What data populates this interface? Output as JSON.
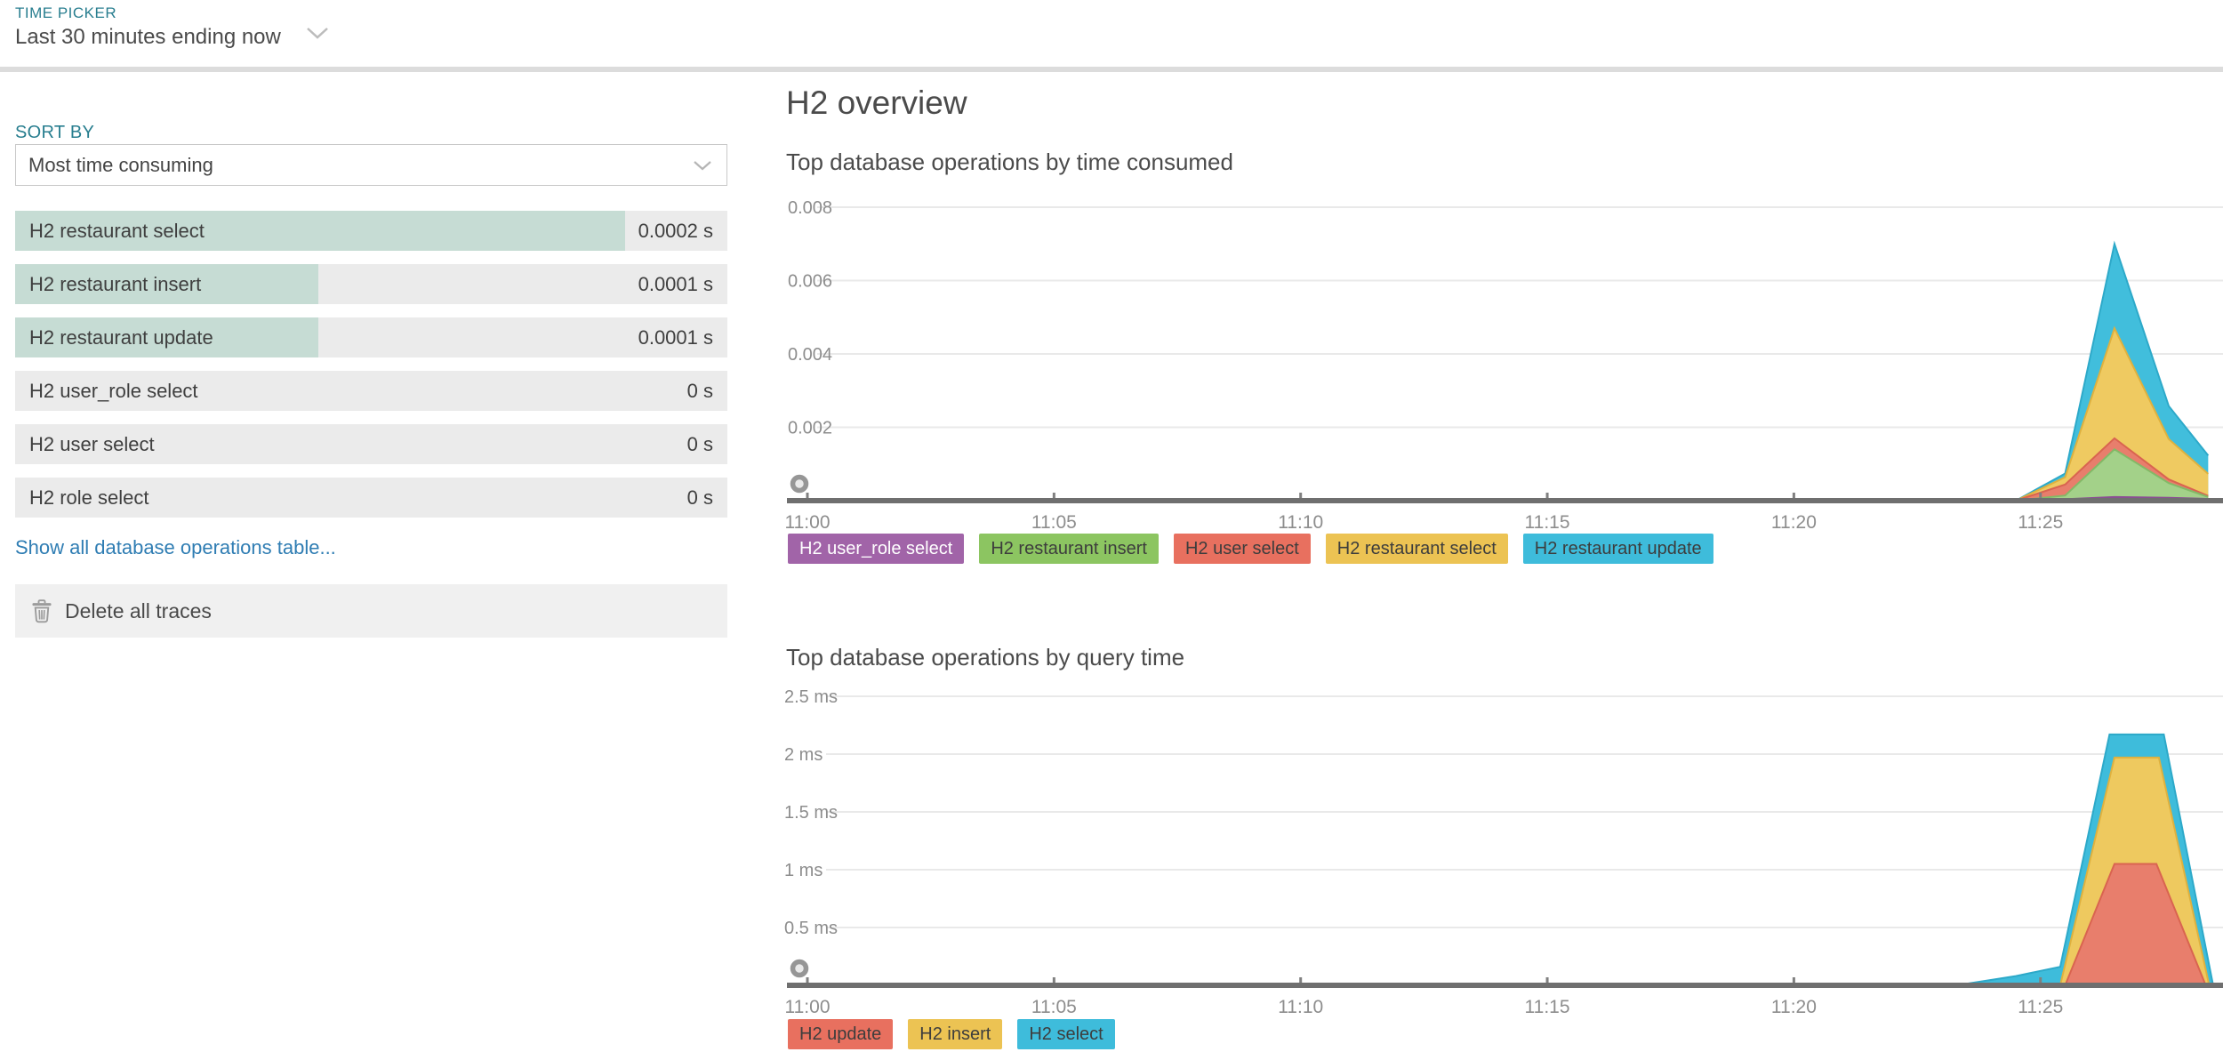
{
  "header": {
    "time_picker_label": "TIME PICKER",
    "time_picker_value": "Last 30 minutes ending now"
  },
  "sidebar": {
    "sort_by_label": "SORT BY",
    "sort_by_value": "Most time consuming",
    "operations": [
      {
        "name": "H2 restaurant select",
        "value": "0.0002 s",
        "bar_pct": 85.6
      },
      {
        "name": "H2 restaurant insert",
        "value": "0.0001 s",
        "bar_pct": 42.6
      },
      {
        "name": "H2 restaurant update",
        "value": "0.0001 s",
        "bar_pct": 42.6
      },
      {
        "name": "H2 user_role select",
        "value": "0 s",
        "bar_pct": 0
      },
      {
        "name": "H2 user select",
        "value": "0 s",
        "bar_pct": 0
      },
      {
        "name": "H2 role select",
        "value": "0 s",
        "bar_pct": 0
      }
    ],
    "show_all_link": "Show all database operations table...",
    "delete_button_label": "Delete all traces"
  },
  "main": {
    "title": "H2 overview"
  },
  "colors": {
    "accent_teal": "#287e8f",
    "link_blue": "#2f7db3",
    "list_bar_fill": "#c6dcd4",
    "row_bg": "#ebebeb",
    "axis_line": "#6f6f6f",
    "grid_line": "#e9e9e9",
    "tick_text": "#8d8d8d"
  },
  "chart_data": [
    {
      "type": "area",
      "stacked": true,
      "title": "Top database operations by time consumed",
      "x_axis": {
        "tick_labels": [
          "11:00",
          "11:05",
          "11:10",
          "11:15",
          "11:20",
          "11:25"
        ],
        "tick_minutes": [
          0,
          5,
          10,
          15,
          20,
          25
        ],
        "range_minutes": [
          0,
          28.7
        ]
      },
      "y_axis": {
        "tick_values": [
          0.002,
          0.004,
          0.006,
          0.008
        ],
        "tick_labels": [
          "0.002",
          "0.004",
          "0.006",
          "0.008"
        ],
        "ylim": [
          0,
          0.0083
        ],
        "unit": "s"
      },
      "x_minutes": [
        0,
        5,
        10,
        15,
        20,
        24.5,
        25.5,
        26.5,
        27.6,
        28.4
      ],
      "series": [
        {
          "name": "H2 user_role select",
          "values": [
            0,
            0,
            0,
            0,
            0,
            0,
            4e-05,
            0.0001,
            8e-05,
            5e-05
          ],
          "fill": "#9e63a6",
          "stroke": "#8a4f93"
        },
        {
          "name": "H2 restaurant insert",
          "values": [
            0,
            0,
            0,
            0,
            0,
            0,
            0.0001,
            0.0013,
            0.0004,
            5e-05
          ],
          "fill": "#a3d189",
          "stroke": "#83b967"
        },
        {
          "name": "H2 user select",
          "values": [
            0,
            0,
            0,
            0,
            0,
            0,
            0.0003,
            0.0003,
            0.0001,
            3e-05
          ],
          "fill": "#e87e6c",
          "stroke": "#d96450"
        },
        {
          "name": "H2 restaurant select",
          "values": [
            0,
            0,
            0,
            0,
            0,
            0,
            0.0002,
            0.003,
            0.0011,
            0.0006
          ],
          "fill": "#efca61",
          "stroke": "#dfb13e"
        },
        {
          "name": "H2 restaurant update",
          "values": [
            0,
            0,
            0,
            0,
            0,
            0,
            0.0001,
            0.0023,
            0.0009,
            0.0005
          ],
          "fill": "#41bedc",
          "stroke": "#2da9c9"
        }
      ],
      "legend": [
        {
          "label": "H2 user_role select",
          "bg": "#a164a8",
          "text": "#ffffff"
        },
        {
          "label": "H2 restaurant insert",
          "bg": "#8cc561",
          "text": "#3d3d3d"
        },
        {
          "label": "H2 user select",
          "bg": "#e8705f",
          "text": "#3d3d3d"
        },
        {
          "label": "H2 restaurant select",
          "bg": "#ecc353",
          "text": "#3d3d3d"
        },
        {
          "label": "H2 restaurant update",
          "bg": "#3ebcdb",
          "text": "#3d3d3d"
        }
      ],
      "marker": {
        "minute": 0,
        "value": 0
      }
    },
    {
      "type": "area",
      "stacked": false,
      "title": "Top database operations by query time",
      "x_axis": {
        "tick_labels": [
          "11:00",
          "11:05",
          "11:10",
          "11:15",
          "11:20",
          "11:25"
        ],
        "tick_minutes": [
          0,
          5,
          10,
          15,
          20,
          25
        ],
        "range_minutes": [
          0,
          28.7
        ]
      },
      "y_axis": {
        "tick_values": [
          0.5,
          1,
          1.5,
          2,
          2.5
        ],
        "tick_labels": [
          "0.5 ms",
          "1 ms",
          "1.5 ms",
          "2 ms",
          "2.5 ms"
        ],
        "ylim": [
          0,
          2.7
        ],
        "unit": "ms"
      },
      "series": [
        {
          "name": "H2 select",
          "points": [
            [
              0,
              0
            ],
            [
              23.3,
              0
            ],
            [
              24.5,
              0.08
            ],
            [
              25.4,
              0.16
            ],
            [
              26.4,
              2.17
            ],
            [
              27.5,
              2.17
            ],
            [
              28.5,
              0
            ]
          ],
          "fill": "#3ebcdb",
          "stroke": "#2da9c9"
        },
        {
          "name": "H2 insert",
          "points": [
            [
              0,
              0
            ],
            [
              25.4,
              0
            ],
            [
              26.5,
              1.97
            ],
            [
              27.4,
              1.97
            ],
            [
              28.42,
              0
            ]
          ],
          "fill": "#eec95f",
          "stroke": "#dfb13e"
        },
        {
          "name": "H2 update",
          "points": [
            [
              0,
              0
            ],
            [
              25.5,
              0
            ],
            [
              26.5,
              1.05
            ],
            [
              27.35,
              1.05
            ],
            [
              28.35,
              0
            ]
          ],
          "fill": "#e87e6c",
          "stroke": "#d96450"
        }
      ],
      "legend": [
        {
          "label": "H2 update",
          "bg": "#e8705f",
          "text": "#3d3d3d"
        },
        {
          "label": "H2 insert",
          "bg": "#ecc353",
          "text": "#3d3d3d"
        },
        {
          "label": "H2 select",
          "bg": "#3ebcdb",
          "text": "#3d3d3d"
        }
      ],
      "marker": {
        "minute": 0,
        "value": 0
      }
    }
  ]
}
